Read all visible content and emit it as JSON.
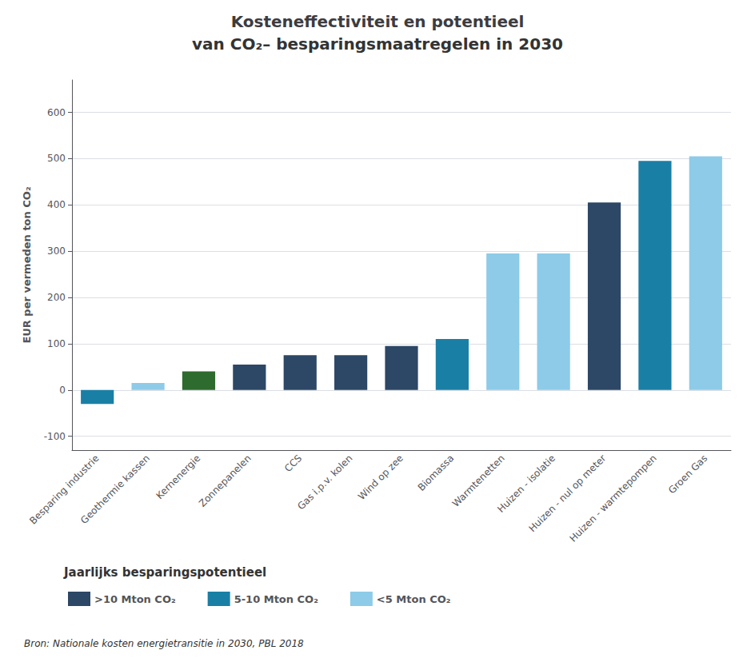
{
  "chart_data": {
    "type": "bar",
    "title": "Kosteneffectiviteit en potentieel",
    "subtitle": "van CO₂– besparingsmaatregelen in 2030",
    "ylabel": "EUR per vermeden ton CO₂",
    "source": "Bron: Nationale kosten energietransitie in 2030, PBL 2018",
    "legend_title": "Jaarlijks besparingspotentieel",
    "legend_items": [
      {
        "label": ">10 Mton CO₂",
        "color": "#2d4766"
      },
      {
        "label": "5-10 Mton CO₂",
        "color": "#1a7fa5"
      },
      {
        "label": "<5 Mton CO₂",
        "color": "#8dcbe8"
      }
    ],
    "legend": "bottom",
    "categories": [
      "Besparing industrie",
      "Geothermie kassen",
      "Kernenergie",
      "Zonnepanelen",
      "CCS",
      "Gas i.p.v. kolen",
      "Wind op zee",
      "Biomassa",
      "Warmtenetten",
      "Huizen - isolatie",
      "Huizen - nul op meter",
      "Huizen - warmtepompen",
      "Groen Gas"
    ],
    "values": [
      -30,
      15,
      40,
      55,
      75,
      75,
      95,
      110,
      295,
      295,
      405,
      495,
      505
    ],
    "colors": [
      "#1a7fa5",
      "#8dcbe8",
      "#2e6b2e",
      "#2d4766",
      "#2d4766",
      "#2d4766",
      "#2d4766",
      "#1a7fa5",
      "#8dcbe8",
      "#8dcbe8",
      "#2d4766",
      "#1a7fa5",
      "#8dcbe8"
    ],
    "ylim": [
      -130,
      670
    ],
    "yticks": [
      -100,
      0,
      100,
      200,
      300,
      400,
      500,
      600
    ],
    "grid": true
  }
}
